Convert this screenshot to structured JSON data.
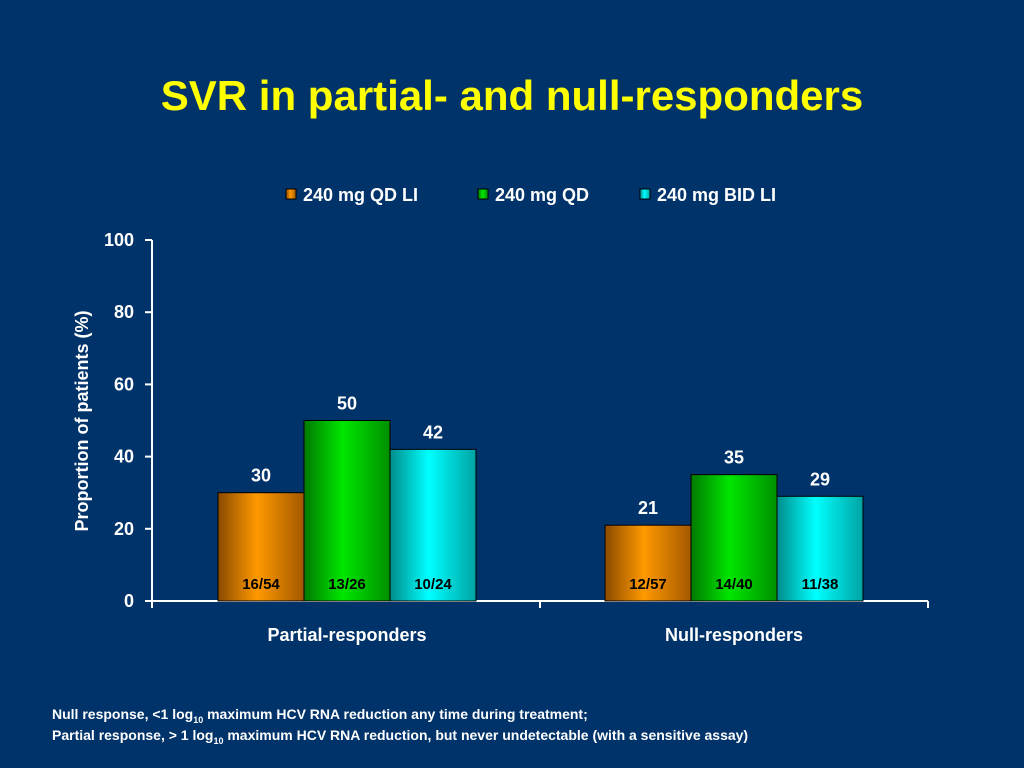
{
  "slide": {
    "title": "SVR in partial- and null-responders",
    "footnote_1": {
      "before": "Null response, <1 log",
      "sub": "10",
      "after": " maximum HCV RNA reduction any time during treatment;"
    },
    "footnote_2": {
      "before": "Partial response, > 1 log",
      "sub": "10",
      "after": " maximum HCV RNA reduction, but never undetectable (with a sensitive assay)"
    }
  },
  "chart_data": {
    "type": "bar",
    "categories": [
      "Partial-responders",
      "Null-responders"
    ],
    "ylabel": "Proportion of patients (%)",
    "xlabel": "",
    "ylim": [
      0,
      100
    ],
    "yticks": [
      0,
      20,
      40,
      60,
      80,
      100
    ],
    "legend_position": "top",
    "grid": false,
    "series": [
      {
        "name": "240 mg QD LI",
        "color": "#FF9900",
        "values": [
          30,
          21
        ],
        "labels": [
          "30",
          "21"
        ],
        "counts": [
          "16/54",
          "12/57"
        ]
      },
      {
        "name": "240 mg QD",
        "color": "#00E600",
        "values": [
          50,
          35
        ],
        "labels": [
          "50",
          "35"
        ],
        "counts": [
          "13/26",
          "14/40"
        ]
      },
      {
        "name": "240 mg BID LI",
        "color": "#00FFFF",
        "values": [
          42,
          29
        ],
        "labels": [
          "42",
          "29"
        ],
        "counts": [
          "10/24",
          "11/38"
        ]
      }
    ]
  }
}
